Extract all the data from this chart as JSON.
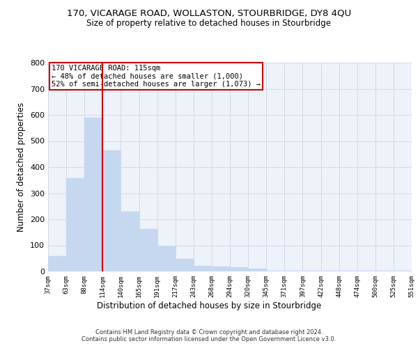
{
  "title": "170, VICARAGE ROAD, WOLLASTON, STOURBRIDGE, DY8 4QU",
  "subtitle": "Size of property relative to detached houses in Stourbridge",
  "xlabel": "Distribution of detached houses by size in Stourbridge",
  "ylabel": "Number of detached properties",
  "bar_values": [
    60,
    358,
    590,
    465,
    230,
    162,
    96,
    49,
    22,
    19,
    15,
    10,
    4,
    4,
    4,
    3,
    3,
    2,
    2,
    2
  ],
  "bar_labels": [
    "37sqm",
    "63sqm",
    "88sqm",
    "114sqm",
    "140sqm",
    "165sqm",
    "191sqm",
    "217sqm",
    "243sqm",
    "268sqm",
    "294sqm",
    "320sqm",
    "345sqm",
    "371sqm",
    "397sqm",
    "422sqm",
    "448sqm",
    "474sqm",
    "500sqm",
    "525sqm",
    "551sqm"
  ],
  "bar_color": "#c5d8f0",
  "bar_edge_color": "#c5d8f0",
  "grid_color": "#d0daea",
  "annotation_line_color": "#cc0000",
  "annotation_text_line1": "170 VICARAGE ROAD: 115sqm",
  "annotation_text_line2": "← 48% of detached houses are smaller (1,000)",
  "annotation_text_line3": "52% of semi-detached houses are larger (1,073) →",
  "annotation_box_facecolor": "#ffffff",
  "annotation_box_edgecolor": "#cc0000",
  "ylim": [
    0,
    800
  ],
  "yticks": [
    0,
    100,
    200,
    300,
    400,
    500,
    600,
    700,
    800
  ],
  "bg_color": "#eef2f9",
  "footer_line1": "Contains HM Land Registry data © Crown copyright and database right 2024.",
  "footer_line2": "Contains public sector information licensed under the Open Government Licence v3.0."
}
